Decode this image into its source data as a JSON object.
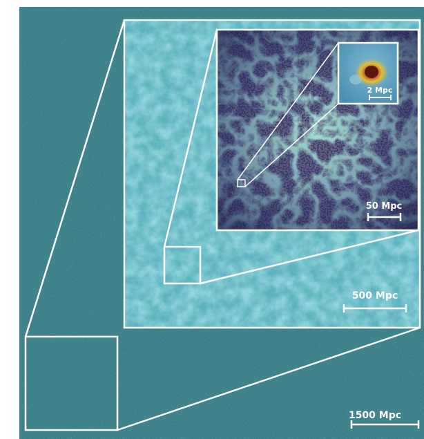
{
  "figure": {
    "scale_bars": {
      "outer": "1500 Mpc",
      "mid": "500 Mpc",
      "inner": "50 Mpc",
      "zoom": "2 Mpc"
    },
    "colors": {
      "outer_field": "#2b6e78",
      "mid_field": "#5fb6c2",
      "inner_dark": "#2a2f6b",
      "filament": "#4fd0c9",
      "halo_core": "#6b1d12",
      "halo_hot": "#f0c020",
      "frame": "#ffffff"
    }
  }
}
